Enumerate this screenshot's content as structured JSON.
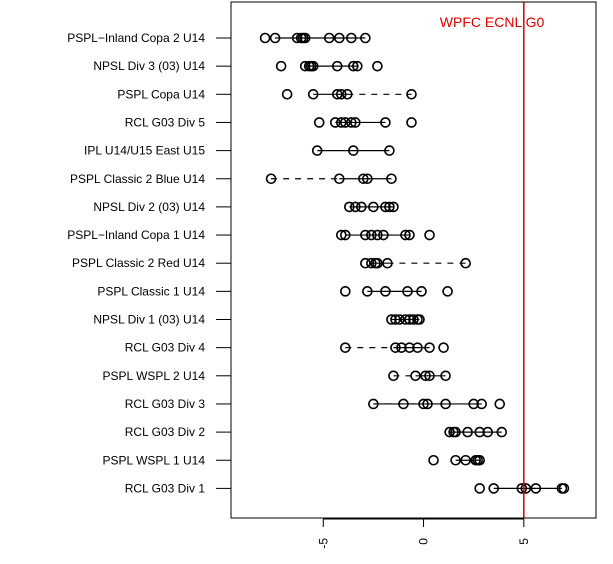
{
  "chart_data": {
    "type": "scatter",
    "title": "",
    "xlabel": "",
    "ylabel": "",
    "xlim": [
      -9.6,
      8.6
    ],
    "x_ticks": [
      -5,
      0,
      5
    ],
    "x_tick_labels": [
      "-5",
      "0",
      "5"
    ],
    "grid": false,
    "categories": [
      "PSPL−Inland Copa 2 U14",
      "NPSL Div 3 (03) U14",
      "PSPL Copa U14",
      "RCL G03 Div 5",
      "IPL U14/U15 East U15",
      "PSPL Classic 2 Blue U14",
      "NPSL Div 2 (03) U14",
      "PSPL−Inland Copa 1 U14",
      "PSPL Classic 2 Red U14",
      "PSPL Classic 1 U14",
      "NPSL Div 1 (03) U14",
      "RCL G03 Div 4",
      "PSPL WSPL 2 U14",
      "RCL G03 Div 3",
      "RCL G03 Div 2",
      "PSPL WSPL 1 U14",
      "RCL G03 Div 1"
    ],
    "points": [
      [
        -7.9,
        -7.4,
        -6.3,
        -6.1,
        -6.0,
        -5.9,
        -4.7,
        -4.2,
        -3.6,
        -2.9
      ],
      [
        -7.1,
        -5.9,
        -5.7,
        -5.6,
        -5.5,
        -4.3,
        -3.5,
        -3.3,
        -2.3
      ],
      [
        -6.8,
        -5.5,
        -4.3,
        -4.1,
        -3.8,
        -0.6
      ],
      [
        -5.2,
        -4.4,
        -4.1,
        -3.9,
        -3.6,
        -3.4,
        -1.9,
        -0.6
      ],
      [
        -5.3,
        -3.5,
        -1.7
      ],
      [
        -7.6,
        -4.2,
        -3.0,
        -2.8,
        -1.6
      ],
      [
        -3.7,
        -3.4,
        -3.1,
        -2.5,
        -1.9,
        -1.7,
        -1.5
      ],
      [
        -4.1,
        -3.9,
        -2.9,
        -2.6,
        -2.3,
        -2.0,
        -0.9,
        -0.7,
        0.3
      ],
      [
        -2.9,
        -2.6,
        -2.4,
        -2.3,
        -1.8,
        2.1
      ],
      [
        -3.9,
        -2.8,
        -1.9,
        -0.8,
        -0.1,
        1.2
      ],
      [
        -1.6,
        -1.4,
        -1.2,
        -0.9,
        -0.7,
        -0.5,
        -0.3,
        -0.2
      ],
      [
        -3.9,
        -1.4,
        -1.1,
        -0.7,
        -0.3,
        0.3,
        1.0
      ],
      [
        -1.5,
        -0.4,
        0.1,
        0.3,
        1.1
      ],
      [
        -2.5,
        -1.0,
        0.0,
        0.2,
        1.1,
        2.5,
        2.9,
        3.8
      ],
      [
        1.3,
        1.5,
        1.6,
        2.2,
        2.8,
        3.2,
        3.9
      ],
      [
        0.5,
        1.6,
        2.1,
        2.6,
        2.7,
        2.8
      ],
      [
        2.8,
        3.5,
        4.9,
        5.1,
        5.6,
        6.9,
        7.0
      ]
    ],
    "solid_segments": [
      [
        [
          -7.4,
          -2.9
        ]
      ],
      [
        [
          -5.9,
          -3.3
        ]
      ],
      [
        [
          -5.5,
          -3.8
        ]
      ],
      [
        [
          -4.4,
          -1.9
        ]
      ],
      [
        [
          -5.3,
          -1.7
        ]
      ],
      [
        [
          -4.2,
          -1.6
        ]
      ],
      [
        [
          -3.7,
          -1.5
        ]
      ],
      [
        [
          -3.9,
          -0.7
        ]
      ],
      [
        [
          -2.6,
          -1.8
        ]
      ],
      [
        [
          -2.8,
          -0.1
        ]
      ],
      [
        [
          -1.6,
          -0.2
        ]
      ],
      [
        [
          -1.4,
          0.3
        ]
      ],
      [
        [
          -0.4,
          1.1
        ]
      ],
      [
        [
          -2.5,
          2.9
        ]
      ],
      [
        [
          1.3,
          3.9
        ]
      ],
      [
        [
          1.6,
          2.8
        ]
      ],
      [
        [
          3.5,
          6.9
        ]
      ]
    ],
    "dashed_segments": [
      [],
      [],
      [
        [
          -3.8,
          -0.6
        ]
      ],
      [],
      [],
      [
        [
          -7.6,
          -4.2
        ]
      ],
      [],
      [],
      [
        [
          -1.8,
          2.1
        ]
      ],
      [],
      [],
      [
        [
          -3.9,
          -1.4
        ]
      ],
      [
        [
          -1.5,
          -0.4
        ]
      ],
      [
        [
          -2.5,
          -0.0
        ]
      ],
      [],
      [],
      []
    ],
    "reference_line": {
      "x": 5.0,
      "label": "WPFC ECNL G0",
      "color": "#dd0000"
    },
    "point_color": "#000000"
  }
}
